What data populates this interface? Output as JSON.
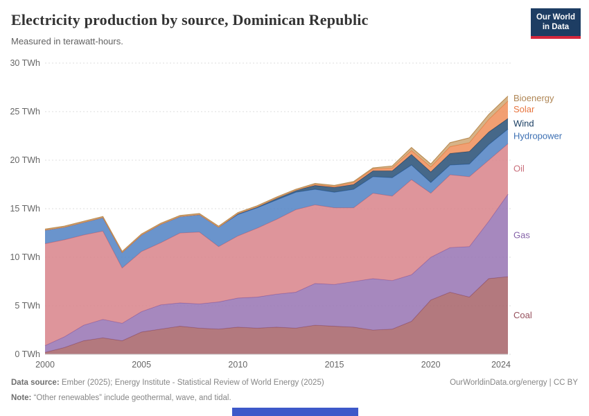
{
  "header": {
    "title": "Electricity production by source, Dominican Republic",
    "subtitle": "Measured in terawatt-hours.",
    "logo": {
      "line1": "Our World",
      "line2": "in Data"
    }
  },
  "chart_data": {
    "type": "area",
    "stacked": true,
    "title": "Electricity production by source, Dominican Republic",
    "unit": "TWh",
    "ylim": [
      0,
      30
    ],
    "grid": true,
    "legend_position": "right-edge-labels",
    "years": [
      2000,
      2001,
      2002,
      2003,
      2004,
      2005,
      2006,
      2007,
      2008,
      2009,
      2010,
      2011,
      2012,
      2013,
      2014,
      2015,
      2016,
      2017,
      2018,
      2019,
      2020,
      2021,
      2022,
      2023,
      2024
    ],
    "xticks": [
      2000,
      2005,
      2010,
      2015,
      2020,
      2024
    ],
    "yticks": [
      {
        "value": 0,
        "label": "0 TWh"
      },
      {
        "value": 5,
        "label": "5 TWh"
      },
      {
        "value": 10,
        "label": "10 TWh"
      },
      {
        "value": 15,
        "label": "15 TWh"
      },
      {
        "value": 20,
        "label": "20 TWh"
      },
      {
        "value": 25,
        "label": "25 TWh"
      },
      {
        "value": 30,
        "label": "30 TWh"
      }
    ],
    "series": [
      {
        "name": "Coal",
        "color": "#a8666c",
        "line_color": "#96545d",
        "label_color": "#96505c",
        "values": [
          0.2,
          0.7,
          1.4,
          1.7,
          1.4,
          2.3,
          2.6,
          2.9,
          2.7,
          2.6,
          2.8,
          2.7,
          2.8,
          2.7,
          3.0,
          2.9,
          2.8,
          2.5,
          2.6,
          3.4,
          5.6,
          6.4,
          5.9,
          7.8,
          8.0
        ]
      },
      {
        "name": "Gas",
        "color": "#9a77b5",
        "line_color": "#8663a9",
        "label_color": "#8562a8",
        "values": [
          0.7,
          1.1,
          1.6,
          1.9,
          1.8,
          2.1,
          2.5,
          2.4,
          2.5,
          2.8,
          3.0,
          3.2,
          3.4,
          3.7,
          4.3,
          4.3,
          4.7,
          5.3,
          5.0,
          4.8,
          4.4,
          4.6,
          5.2,
          5.9,
          8.5
        ]
      },
      {
        "name": "Oil",
        "color": "#da868d",
        "line_color": "#cb6f79",
        "label_color": "#c96f7b",
        "values": [
          10.5,
          10.0,
          9.3,
          9.1,
          5.7,
          6.2,
          6.4,
          7.2,
          7.4,
          5.7,
          6.4,
          7.1,
          7.7,
          8.5,
          8.1,
          7.9,
          7.6,
          8.8,
          8.7,
          9.8,
          6.6,
          7.5,
          7.2,
          6.3,
          5.2
        ]
      },
      {
        "name": "Hydropower",
        "color": "#5585c5",
        "line_color": "#3d70b3",
        "label_color": "#3d70b3",
        "values": [
          1.4,
          1.3,
          1.3,
          1.4,
          1.6,
          1.7,
          1.9,
          1.7,
          1.8,
          2.0,
          2.2,
          2.1,
          2.0,
          1.8,
          1.6,
          1.6,
          1.9,
          1.7,
          1.9,
          1.5,
          1.1,
          1.0,
          1.3,
          1.6,
          1.5
        ]
      },
      {
        "name": "Wind",
        "color": "#2c5379",
        "line_color": "#1d4266",
        "label_color": "#1a3e63",
        "values": [
          0,
          0,
          0,
          0,
          0,
          0,
          0,
          0,
          0,
          0,
          0.1,
          0.1,
          0.2,
          0.2,
          0.4,
          0.5,
          0.5,
          0.6,
          0.7,
          1.1,
          1.1,
          1.2,
          1.3,
          1.3,
          1.1
        ]
      },
      {
        "name": "Solar",
        "color": "#f0925f",
        "line_color": "#e57b3f",
        "label_color": "#e8753f",
        "values": [
          0,
          0,
          0,
          0,
          0,
          0,
          0,
          0,
          0,
          0,
          0,
          0,
          0,
          0,
          0.1,
          0.1,
          0.2,
          0.2,
          0.3,
          0.4,
          0.5,
          0.7,
          0.9,
          1.3,
          1.8
        ]
      },
      {
        "name": "Bioenergy",
        "color": "#d0a878",
        "line_color": "#b98c52",
        "label_color": "#af8655",
        "values": [
          0.1,
          0.1,
          0.1,
          0.1,
          0.1,
          0.1,
          0.1,
          0.1,
          0.1,
          0.1,
          0.1,
          0.1,
          0.1,
          0.1,
          0.1,
          0.1,
          0.1,
          0.1,
          0.2,
          0.3,
          0.3,
          0.4,
          0.5,
          0.5,
          0.5
        ]
      }
    ]
  },
  "footer": {
    "datasource_label": "Data source:",
    "datasource_text": " Ember (2025); Energy Institute - Statistical Review of World Energy (2025)",
    "note_label": "Note:",
    "note_text": " “Other renewables” include geothermal, wave, and tidal.",
    "link": "OurWorldinData.org/energy | CC BY"
  }
}
